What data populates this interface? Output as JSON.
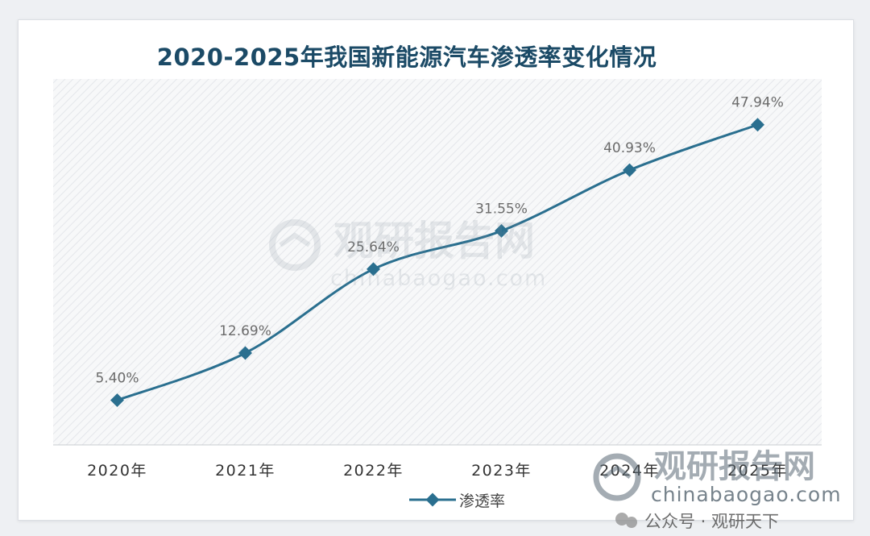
{
  "chart_data": {
    "type": "line",
    "title": "2020-2025年我国新能源汽车渗透率变化情况",
    "categories": [
      "2020年",
      "2021年",
      "2022年",
      "2023年",
      "2024年",
      "2025年"
    ],
    "series": [
      {
        "name": "渗透率",
        "values": [
          5.4,
          12.69,
          25.64,
          31.55,
          40.93,
          47.94
        ],
        "labels": [
          "5.40%",
          "12.69%",
          "25.64%",
          "31.55%",
          "40.93%",
          "47.94%"
        ]
      }
    ],
    "ylim": [
      -1.5,
      55
    ],
    "grid": false,
    "legend": "bottom",
    "marker": "diamond",
    "line_color": "#2a6f8f",
    "label_color": "#6b6b6b",
    "title_color": "#1b4a66"
  },
  "watermark": {
    "brand": "观研报告网",
    "domain": "chinabaogao.com",
    "wechat": "公众号 · 观研天下"
  }
}
